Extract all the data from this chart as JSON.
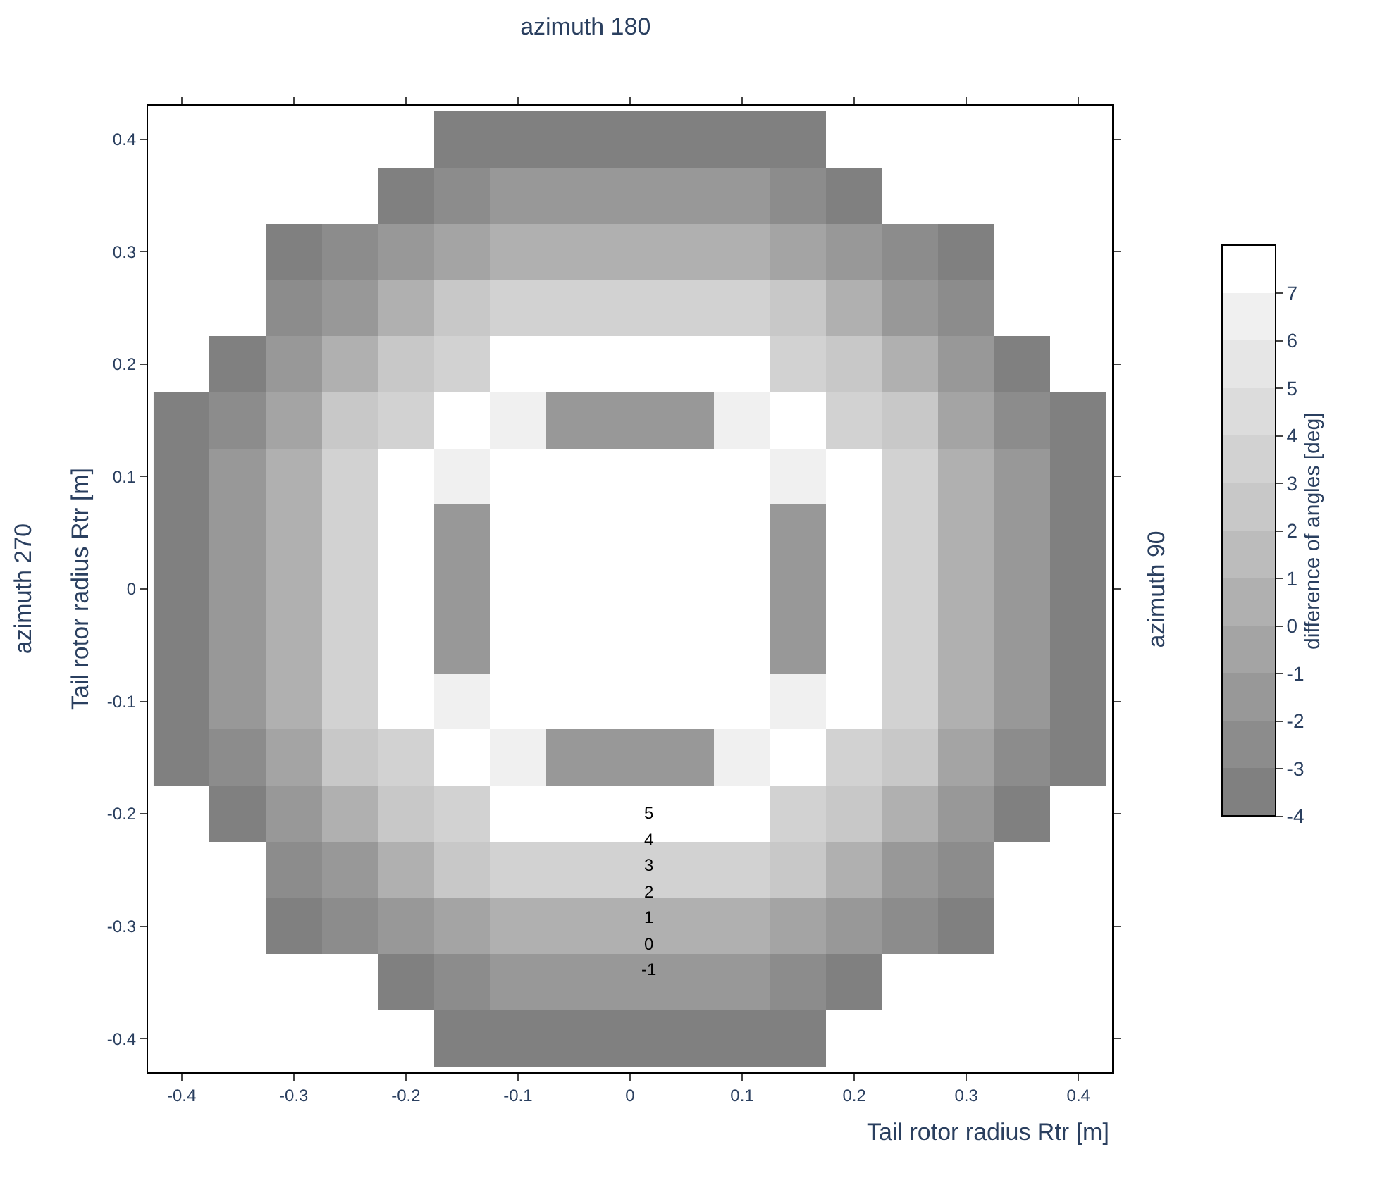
{
  "chart_data": {
    "type": "heatmap",
    "title": "azimuth 180",
    "xlabel": "Tail rotor radius Rtr [m]",
    "ylabel": "Tail rotor radius Rtr [m]",
    "clabel": "difference of angles [deg]",
    "annotations": [
      "azimuth 270",
      "azimuth 90",
      "5",
      "4",
      "3",
      "2",
      "1",
      "0",
      "-1"
    ],
    "x": [
      -0.4,
      -0.35,
      -0.3,
      -0.25,
      -0.2,
      -0.15,
      -0.1,
      -0.05,
      0,
      0.05,
      0.1,
      0.15,
      0.2,
      0.25,
      0.3,
      0.35,
      0.4
    ],
    "y": [
      0.4,
      0.35,
      0.3,
      0.25,
      0.2,
      0.15,
      0.1,
      0.05,
      0,
      -0.05,
      -0.1,
      -0.15,
      -0.2,
      -0.25,
      -0.3,
      -0.35,
      -0.4
    ],
    "cells": [
      [
        null,
        null,
        null,
        null,
        null,
        -3.5,
        -3.5,
        -3.5,
        -3.5,
        -3.5,
        -3.5,
        -3.5,
        null,
        null,
        null,
        null,
        null
      ],
      [
        null,
        null,
        null,
        null,
        -3.5,
        -2.5,
        -1.5,
        -1.5,
        -1.5,
        -1.5,
        -1.5,
        -2.5,
        -3.5,
        null,
        null,
        null,
        null
      ],
      [
        null,
        null,
        -3.5,
        -2.5,
        -1.5,
        -0.5,
        0.5,
        0.5,
        0.5,
        0.5,
        0.5,
        -0.5,
        -1.5,
        -2.5,
        -3.5,
        null,
        null
      ],
      [
        null,
        null,
        -2.5,
        -1.5,
        0.5,
        2,
        3.5,
        3.5,
        3.5,
        3.5,
        3.5,
        2,
        0.5,
        -1.5,
        -2.5,
        null,
        null
      ],
      [
        null,
        -3.5,
        -1.5,
        0.5,
        2,
        3.5,
        7,
        7,
        7,
        7,
        7,
        3.5,
        2,
        0.5,
        -1.5,
        -3.5,
        null
      ],
      [
        -3.5,
        -2.5,
        -0.5,
        2,
        3.5,
        7,
        6,
        -2,
        -2,
        -2,
        6,
        7,
        3.5,
        2,
        -0.5,
        -2.5,
        -3.5
      ],
      [
        -3.5,
        -1.5,
        0.5,
        3.5,
        7,
        6,
        null,
        null,
        null,
        null,
        null,
        6,
        7,
        3.5,
        0.5,
        -1.5,
        -3.5
      ],
      [
        -3.5,
        -1.5,
        0.5,
        3.5,
        7,
        -2,
        null,
        null,
        null,
        null,
        null,
        -2,
        7,
        3.5,
        0.5,
        -1.5,
        -3.5
      ],
      [
        -3.5,
        -1.5,
        0.5,
        3.5,
        7,
        -2,
        null,
        null,
        null,
        null,
        null,
        -2,
        7,
        3.5,
        0.5,
        -1.5,
        -3.5
      ],
      [
        -3.5,
        -1.5,
        0.5,
        3.5,
        7,
        -2,
        null,
        null,
        null,
        null,
        null,
        -2,
        7,
        3.5,
        0.5,
        -1.5,
        -3.5
      ],
      [
        -3.5,
        -1.5,
        0.5,
        3.5,
        7,
        6,
        null,
        null,
        null,
        null,
        null,
        6,
        7,
        3.5,
        0.5,
        -1.5,
        -3.5
      ],
      [
        -3.5,
        -2.5,
        -0.5,
        2,
        3.5,
        7,
        6,
        -2,
        -2,
        -2,
        6,
        7,
        3.5,
        2,
        -0.5,
        -2.5,
        -3.5
      ],
      [
        null,
        -3.5,
        -1.5,
        0.5,
        2,
        3.5,
        7,
        7,
        7,
        7,
        7,
        3.5,
        2,
        0.5,
        -1.5,
        -3.5,
        null
      ],
      [
        null,
        null,
        -2.5,
        -1.5,
        0.5,
        2,
        3.5,
        3.5,
        3.5,
        3.5,
        3.5,
        2,
        0.5,
        -1.5,
        -2.5,
        null,
        null
      ],
      [
        null,
        null,
        -3.5,
        -2.5,
        -1.5,
        -0.5,
        0.5,
        0.5,
        0.5,
        0.5,
        0.5,
        -0.5,
        -1.5,
        -2.5,
        -3.5,
        null,
        null
      ],
      [
        null,
        null,
        null,
        null,
        -3.5,
        -2.5,
        -1.5,
        -1.5,
        -1.5,
        -1.5,
        -1.5,
        -2.5,
        -3.5,
        null,
        null,
        null,
        null
      ],
      [
        null,
        null,
        null,
        null,
        null,
        -3.5,
        -3.5,
        -3.5,
        -3.5,
        -3.5,
        -3.5,
        -3.5,
        null,
        null,
        null,
        null,
        null
      ]
    ],
    "colors": [
      "#808080",
      "#8c8c8c",
      "#989898",
      "#a4a4a4",
      "#b0b0b0",
      "#bcbcbc",
      "#c8c8c8",
      "#d2d2d2",
      "#dcdcdc",
      "#e6e6e6",
      "#f0f0f0",
      "#ffffff"
    ],
    "clim": [
      -4,
      8
    ],
    "cticks": [
      -4,
      -3,
      -2,
      -1,
      0,
      1,
      2,
      3,
      4,
      5,
      6,
      7
    ],
    "xlim": [
      -0.43,
      0.43
    ],
    "xticks": [
      -0.4,
      -0.3,
      -0.2,
      -0.1,
      0,
      0.1,
      0.2,
      0.3,
      0.4
    ],
    "ylim": [
      -0.43,
      0.43
    ],
    "yticks": [
      -0.4,
      -0.3,
      -0.2,
      -0.1,
      0,
      0.1,
      0.2,
      0.3,
      0.4
    ]
  }
}
